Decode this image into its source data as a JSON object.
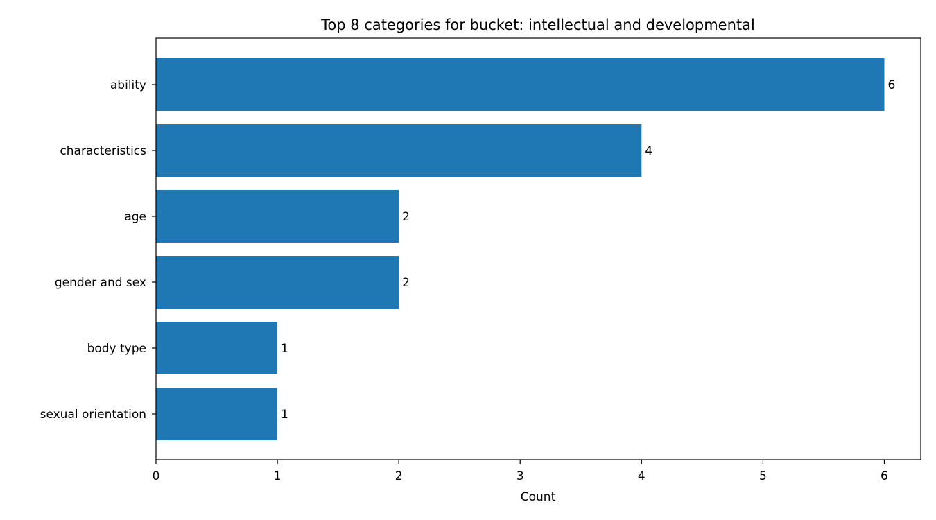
{
  "chart_data": {
    "type": "bar",
    "orientation": "horizontal",
    "title": "Top 8 categories for bucket: intellectual and developmental",
    "xlabel": "Count",
    "ylabel": "",
    "categories": [
      "ability",
      "characteristics",
      "age",
      "gender and sex",
      "body type",
      "sexual orientation"
    ],
    "values": [
      6,
      4,
      2,
      2,
      1,
      1
    ],
    "xlim": [
      0,
      6.3
    ],
    "xticks": [
      0,
      1,
      2,
      3,
      4,
      5,
      6
    ],
    "grid": false,
    "legend": "none",
    "bar_color": "#1f77b4"
  }
}
